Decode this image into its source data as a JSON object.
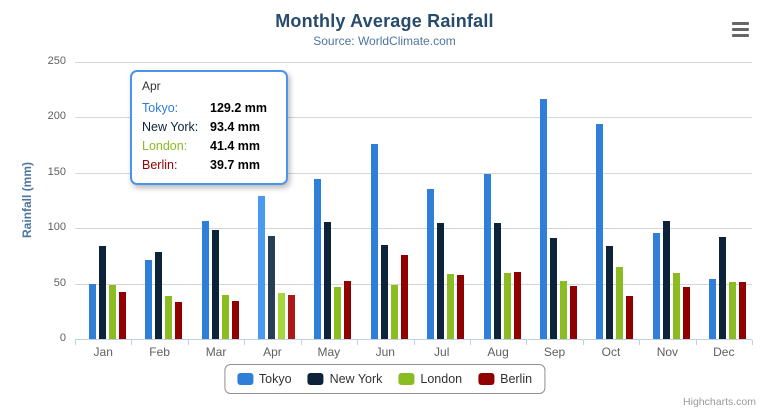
{
  "chart_data": {
    "type": "bar",
    "title": "Monthly Average Rainfall",
    "subtitle": "Source: WorldClimate.com",
    "categories": [
      "Jan",
      "Feb",
      "Mar",
      "Apr",
      "May",
      "Jun",
      "Jul",
      "Aug",
      "Sep",
      "Oct",
      "Nov",
      "Dec"
    ],
    "series": [
      {
        "name": "Tokyo",
        "color": "#2f7ed8",
        "values": [
          49.9,
          71.5,
          106.4,
          129.2,
          144.0,
          176.0,
          135.6,
          148.5,
          216.4,
          194.1,
          95.6,
          54.4
        ]
      },
      {
        "name": "New York",
        "color": "#0d233a",
        "values": [
          83.6,
          78.8,
          98.5,
          93.4,
          106.0,
          84.5,
          105.0,
          104.3,
          91.2,
          83.5,
          106.6,
          92.3
        ]
      },
      {
        "name": "London",
        "color": "#8bbc21",
        "values": [
          48.9,
          38.8,
          39.3,
          41.4,
          47.0,
          48.3,
          59.0,
          59.6,
          52.4,
          65.2,
          59.3,
          51.2
        ]
      },
      {
        "name": "Berlin",
        "color": "#910000",
        "values": [
          42.4,
          33.2,
          34.5,
          39.7,
          52.6,
          75.5,
          57.4,
          60.4,
          47.6,
          39.1,
          46.8,
          51.1
        ]
      }
    ],
    "xlabel": "",
    "ylabel": "Rainfall (mm)",
    "yticks": [
      0,
      50,
      100,
      150,
      200,
      250
    ],
    "ylim": [
      0,
      250
    ],
    "grid": true,
    "legend_position": "bottom",
    "hovered_category": "Apr",
    "hovered_category_index": 3
  },
  "tooltip": {
    "header": "Apr",
    "border_color": "#4a94ec",
    "rows": [
      {
        "name": "Tokyo:",
        "value": "129.2 mm",
        "color": "#2f7ed8"
      },
      {
        "name": "New York:",
        "value": "93.4 mm",
        "color": "#0d233a"
      },
      {
        "name": "London:",
        "value": "41.4 mm",
        "color": "#8bbc21"
      },
      {
        "name": "Berlin:",
        "value": "39.7 mm",
        "color": "#910000"
      }
    ]
  },
  "credits": "Highcharts.com"
}
